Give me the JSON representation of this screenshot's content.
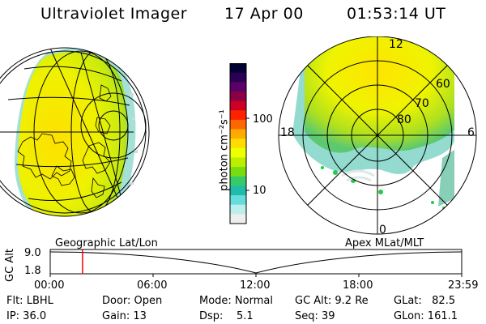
{
  "header": {
    "title": "Ultraviolet Imager",
    "date": "17 Apr 00",
    "time": "01:53:14 UT"
  },
  "colorbar": {
    "unit_label": "photon cm⁻²s⁻¹",
    "ticks": [
      "100",
      "10"
    ],
    "colors": [
      "#000033",
      "#2a0055",
      "#5a0066",
      "#8a0044",
      "#cc0022",
      "#ff2200",
      "#ff6600",
      "#ffaa00",
      "#ffdd00",
      "#eeff00",
      "#bbee00",
      "#77dd11",
      "#33cc66",
      "#22bbaa",
      "#66dddd",
      "#bbeeee",
      "#eeeeee"
    ]
  },
  "polar": {
    "mlt_labels": [
      "12",
      "18",
      "6",
      "0"
    ],
    "lat_labels": [
      "60",
      "70",
      "80"
    ]
  },
  "geo_label": "Geographic Lat/Lon",
  "apex_label": "Apex MLat/MLT",
  "alt_plot": {
    "ylabel": "GC Alt",
    "yticks": [
      "9.0",
      "1.8"
    ],
    "xticks": [
      "00:00",
      "06:00",
      "12:00",
      "18:00",
      "23:59"
    ],
    "marker_time": "01:53"
  },
  "footer": {
    "flt": "Flt: LBHL",
    "ip": "IP: 36.0",
    "door": "Door: Open",
    "gain": "Gain: 13",
    "mode": "Mode: Normal",
    "dsp": "Dsp:    5.1",
    "gcalt": "GC Alt: 9.2 Re",
    "seq": "Seq: 39",
    "glat": "GLat:   82.5",
    "glon": "GLon: 161.1"
  }
}
